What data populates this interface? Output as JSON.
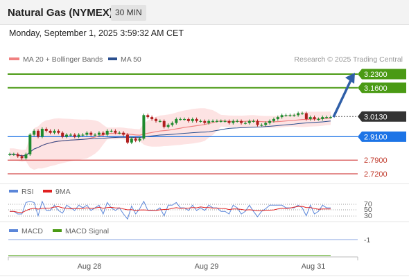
{
  "header": {
    "title": "Natural Gas (NYMEX)",
    "timeframe": "30 MIN"
  },
  "datetime": "Monday, September 1, 2025 3:59:32 AM CET",
  "legend": {
    "ma20": "MA 20 + Bollinger Bands",
    "ma50": "MA 50",
    "copyright": "Research © 2025 Trading Central"
  },
  "colors": {
    "resistance": "#4a9a14",
    "support": "#1d74e6",
    "bearish": "#d44a4a",
    "arrow": "#2f5fa8",
    "price": "#333333",
    "ma20": "#f08080",
    "ma50": "#2b4f8f",
    "bull": "#1f8a2e",
    "bear": "#b01e1e"
  },
  "price_levels": [
    {
      "label": "3.2300",
      "value": 3.23,
      "kind": "resistance"
    },
    {
      "label": "3.1600",
      "value": 3.16,
      "kind": "resistance"
    },
    {
      "label": "3.0130",
      "value": 3.013,
      "kind": "current"
    },
    {
      "label": "2.9100",
      "value": 2.91,
      "kind": "support"
    },
    {
      "label": "2.7900",
      "value": 2.79,
      "kind": "lower"
    },
    {
      "label": "2.7200",
      "value": 2.72,
      "kind": "lower"
    }
  ],
  "rsi_panel": {
    "legend_rsi": "RSI",
    "legend_ma": "9MA",
    "levels": [
      "70",
      "50",
      "30"
    ]
  },
  "macd_panel": {
    "legend_macd": "MACD",
    "legend_signal": "MACD Signal",
    "level": "-1"
  },
  "x_axis": {
    "ticks": [
      "Aug 28",
      "Aug 29",
      "Aug 31"
    ]
  },
  "chart_data": {
    "type": "candlestick",
    "closes": [
      2.82,
      2.82,
      2.81,
      2.8,
      2.82,
      2.92,
      2.94,
      2.91,
      2.95,
      2.94,
      2.93,
      2.94,
      2.93,
      2.91,
      2.92,
      2.92,
      2.91,
      2.92,
      2.92,
      2.93,
      2.92,
      2.92,
      2.93,
      2.92,
      2.94,
      2.94,
      2.93,
      2.93,
      2.92,
      2.88,
      2.9,
      2.89,
      2.9,
      3.02,
      3.01,
      3.0,
      2.99,
      2.99,
      2.96,
      2.97,
      2.98,
      3.0,
      3.0,
      3.0,
      2.99,
      3.0,
      2.99,
      2.99,
      2.98,
      2.99,
      2.99,
      2.99,
      2.99,
      2.99,
      2.98,
      2.99,
      2.99,
      2.98,
      2.98,
      2.99,
      2.99,
      2.97,
      2.97,
      2.98,
      2.99,
      3.0,
      3.01,
      3.02,
      3.02,
      3.02,
      3.02,
      3.03,
      3.03,
      3.0,
      3.01,
      3.0,
      3.0,
      3.01,
      3.01,
      3.01
    ],
    "open_first": 2.82,
    "projection": {
      "from": 3.01,
      "to": 3.23
    },
    "ylim": [
      2.6,
      3.35
    ]
  }
}
